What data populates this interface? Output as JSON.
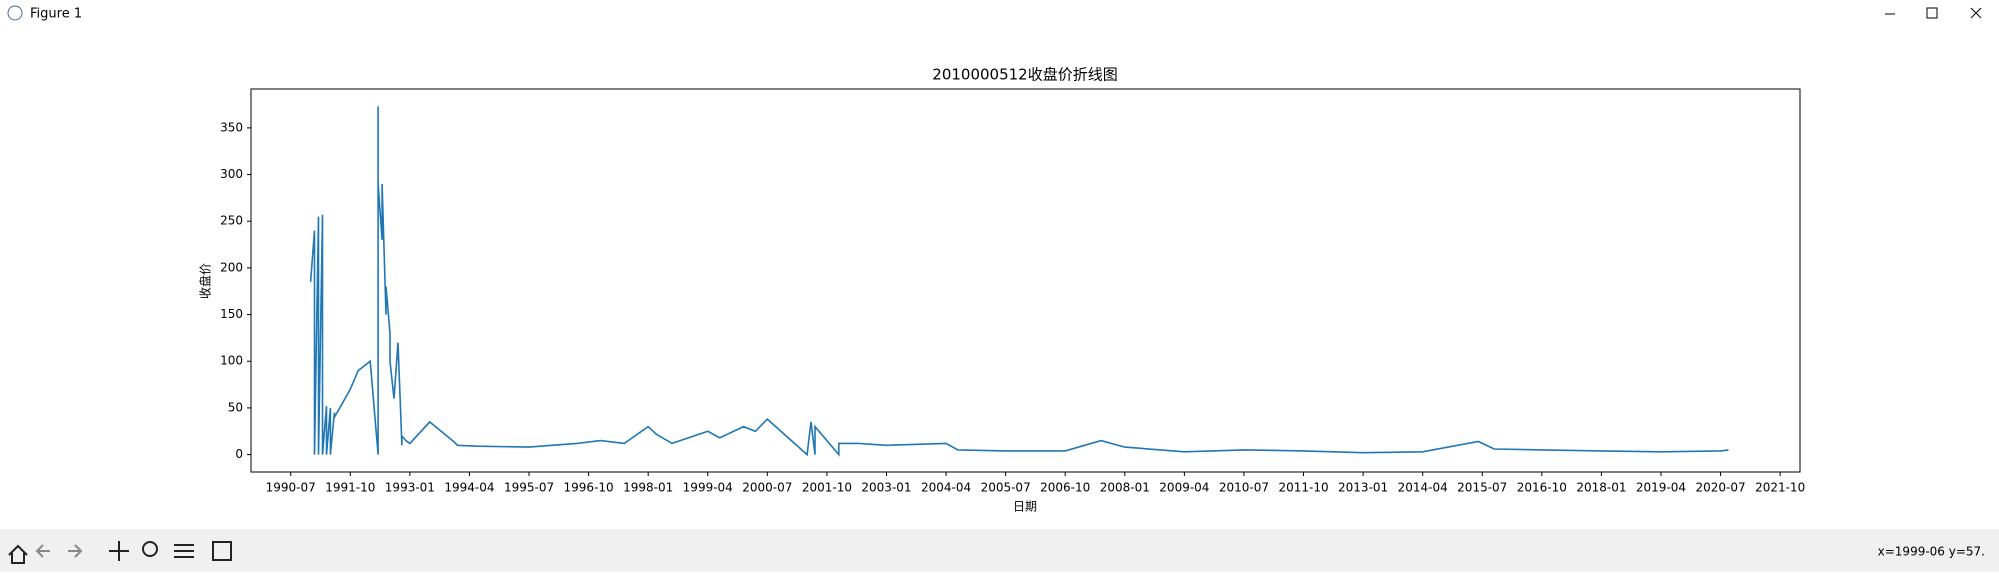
{
  "window": {
    "title": "Figure 1",
    "status": "x=1999-06 y=57."
  },
  "chart_data": {
    "type": "line",
    "title": "2010000512收盘价折线图",
    "x_label": "日期",
    "y_label": "收盘价",
    "color": "#1f77b4",
    "x": [
      "1990-12",
      "1991-01",
      "1991-01",
      "1991-02",
      "1991-02",
      "1991-03",
      "1991-03",
      "1991-04",
      "1991-04",
      "1991-05",
      "1991-05",
      "1991-06",
      "1991-06",
      "1991-08",
      "1991-10",
      "1991-12",
      "1992-03",
      "1992-05",
      "1992-05",
      "1992-05",
      "1992-06",
      "1992-06",
      "1992-07",
      "1992-07",
      "1992-08",
      "1992-08",
      "1992-09",
      "1992-10",
      "1992-11",
      "1992-11",
      "1992-12",
      "1993-01",
      "1993-06",
      "1993-12",
      "1994-01",
      "1994-06",
      "1995-07",
      "1996-07",
      "1997-01",
      "1997-07",
      "1998-01",
      "1998-03",
      "1998-07",
      "1999-04",
      "1999-07",
      "2000-01",
      "2000-04",
      "2000-07",
      "2001-05",
      "2001-06",
      "2001-07",
      "2001-07",
      "2001-10",
      "2002-01",
      "2002-01",
      "2002-06",
      "2003-01",
      "2004-04",
      "2004-07",
      "2005-07",
      "2006-10",
      "2007-07",
      "2008-01",
      "2009-04",
      "2010-07",
      "2011-10",
      "2013-01",
      "2014-04",
      "2015-06",
      "2015-10",
      "2016-10",
      "2018-01",
      "2019-04",
      "2020-07",
      "2020-09"
    ],
    "values": [
      185,
      240,
      0,
      255,
      0,
      257,
      0,
      52,
      0,
      50,
      0,
      45,
      40,
      55,
      70,
      90,
      100,
      0,
      373,
      290,
      230,
      290,
      150,
      180,
      130,
      100,
      60,
      120,
      10,
      20,
      15,
      12,
      35,
      14,
      10,
      9,
      8,
      12,
      15,
      12,
      30,
      22,
      12,
      25,
      18,
      30,
      25,
      38,
      0,
      35,
      0,
      30,
      15,
      0,
      12,
      12,
      10,
      12,
      5,
      4,
      4,
      15,
      8,
      3,
      5,
      4,
      2,
      3,
      14,
      6,
      5,
      4,
      3,
      4,
      5
    ],
    "xlim": [
      "1989-09",
      "2022-03"
    ],
    "xticks": [
      "1990-07",
      "1991-10",
      "1993-01",
      "1994-04",
      "1995-07",
      "1996-10",
      "1998-01",
      "1999-04",
      "2000-07",
      "2001-10",
      "2003-01",
      "2004-04",
      "2005-07",
      "2006-10",
      "2008-01",
      "2009-04",
      "2010-07",
      "2011-10",
      "2013-01",
      "2014-04",
      "2015-07",
      "2016-10",
      "2018-01",
      "2019-04",
      "2020-07",
      "2021-10"
    ],
    "ylim": [
      -18.65,
      391.65
    ],
    "yticks": [
      0,
      50,
      100,
      150,
      200,
      250,
      300,
      350
    ]
  }
}
